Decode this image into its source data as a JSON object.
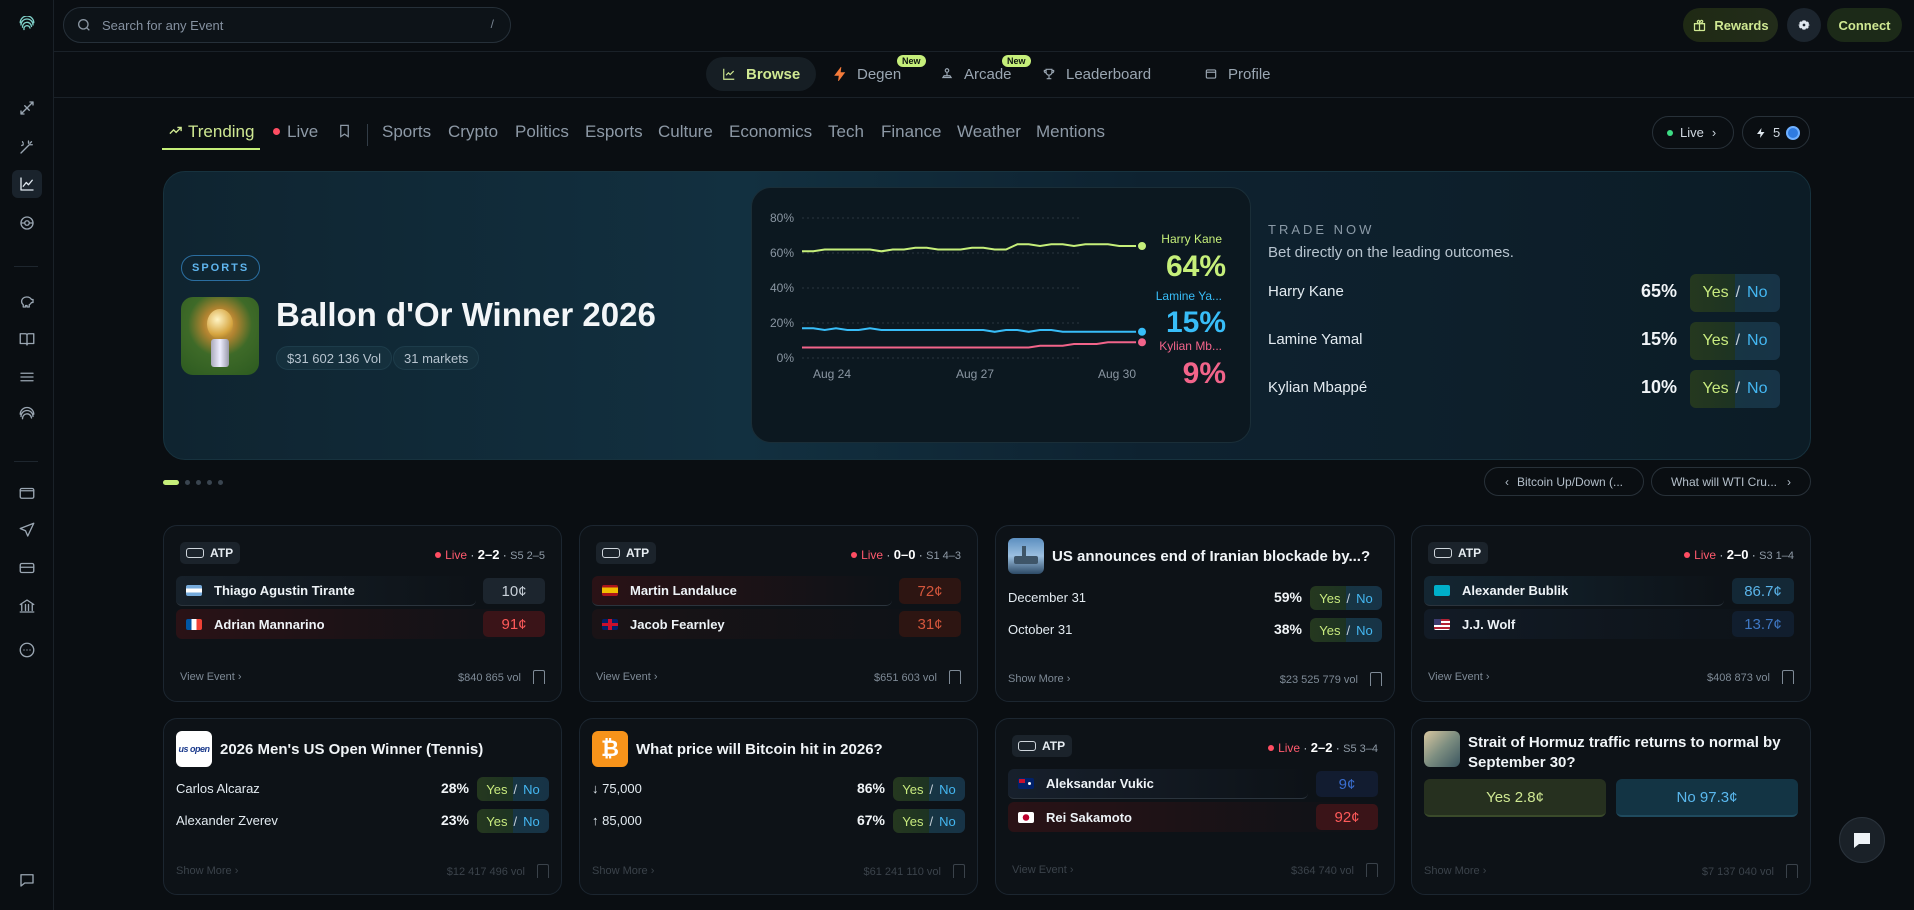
{
  "topbar": {
    "search_placeholder": "Search for any Event",
    "search_shortcut": "/",
    "rewards": "Rewards",
    "connect": "Connect"
  },
  "subnav": [
    {
      "label": "Browse"
    },
    {
      "label": "Degen",
      "badge": "New"
    },
    {
      "label": "Arcade",
      "badge": "New"
    },
    {
      "label": "Leaderboard"
    },
    {
      "label": "Profile"
    }
  ],
  "categories": [
    "Trending",
    "Live",
    "Sports",
    "Crypto",
    "Politics",
    "Esports",
    "Culture",
    "Economics",
    "Tech",
    "Finance",
    "Weather",
    "Mentions"
  ],
  "pills": {
    "live": "Live",
    "boost": "5"
  },
  "hero": {
    "tag": "SPORTS",
    "title": "Ballon d'Or Winner 2026",
    "vol": "$31 602 136 Vol",
    "markets": "31 markets",
    "chart": {
      "yticks": [
        "80%",
        "60%",
        "40%",
        "20%",
        "0%"
      ],
      "xticks": [
        "Aug 24",
        "Aug 27",
        "Aug 30"
      ],
      "series": [
        {
          "name": "Harry Kane",
          "value": "64%",
          "color": "#c6ef7a",
          "points": [
            61,
            61,
            62,
            62,
            62,
            62,
            62,
            61,
            62,
            62,
            63,
            63,
            62,
            62,
            62,
            63,
            63,
            62,
            62,
            65,
            65,
            64,
            65,
            65,
            64,
            65,
            65,
            65,
            64,
            64,
            64
          ]
        },
        {
          "name": "Lamine Ya...",
          "value": "15%",
          "color": "#38bdf8",
          "points": [
            17,
            17,
            16,
            17,
            16,
            16,
            17,
            16,
            16,
            16,
            16,
            16,
            16,
            16,
            16,
            16,
            16,
            15,
            16,
            16,
            15,
            16,
            16,
            15,
            15,
            15,
            15,
            15,
            15,
            15,
            15
          ]
        },
        {
          "name": "Kylian Mb...",
          "value": "9%",
          "color": "#f2648a",
          "points": [
            6,
            6,
            6,
            6,
            6,
            6,
            6,
            6,
            6,
            6,
            6,
            6,
            6,
            6,
            6,
            6,
            6,
            6,
            6,
            6,
            6,
            7,
            7,
            7,
            8,
            8,
            8,
            9,
            9,
            9,
            9
          ]
        }
      ]
    },
    "trade": {
      "heading": "TRADE NOW",
      "sub": "Bet directly on the leading outcomes.",
      "rows": [
        {
          "name": "Harry Kane",
          "pct": "65%"
        },
        {
          "name": "Lamine Yamal",
          "pct": "15%"
        },
        {
          "name": "Kylian Mbappé",
          "pct": "10%"
        }
      ],
      "yes": "Yes",
      "sep": "/",
      "no": "No"
    }
  },
  "carousel": {
    "prev": "Bitcoin Up/Down (...",
    "next": "What will WTI Cru..."
  },
  "cards": [
    {
      "league": "ATP",
      "live": "Live",
      "score": "2–2",
      "set": "S5 2–5",
      "p1": "Thiago Agustin Tirante",
      "p1price": "10¢",
      "p2": "Adrian Mannarino",
      "p2price": "91¢",
      "link": "View Event",
      "vol": "$840 865 vol"
    },
    {
      "league": "ATP",
      "live": "Live",
      "score": "0–0",
      "set": "S1 4–3",
      "p1": "Martin Landaluce",
      "p1price": "72¢",
      "p2": "Jacob Fearnley",
      "p2price": "31¢",
      "link": "View Event",
      "vol": "$651 603 vol"
    },
    {
      "title": "US announces end of Iranian blockade by...?",
      "rows": [
        {
          "l": "December 31",
          "p": "59%"
        },
        {
          "l": "October 31",
          "p": "38%"
        }
      ],
      "link": "Show More",
      "vol": "$23 525 779 vol"
    },
    {
      "league": "ATP",
      "live": "Live",
      "score": "2–0",
      "set": "S3 1–4",
      "p1": "Alexander Bublik",
      "p1price": "86.7¢",
      "p2": "J.J. Wolf",
      "p2price": "13.7¢",
      "link": "View Event",
      "vol": "$408 873 vol"
    },
    {
      "title": "2026 Men's US Open Winner (Tennis)",
      "logo": "us open",
      "rows": [
        {
          "l": "Carlos Alcaraz",
          "p": "28%"
        },
        {
          "l": "Alexander Zverev",
          "p": "23%"
        }
      ],
      "link": "Show More",
      "vol": "$12 417 496 vol"
    },
    {
      "title": "What price will Bitcoin hit in 2026?",
      "rows": [
        {
          "l": "↓ 75,000",
          "p": "86%"
        },
        {
          "l": "↑ 85,000",
          "p": "67%"
        }
      ],
      "link": "Show More",
      "vol": "$61 241 110 vol"
    },
    {
      "league": "ATP",
      "live": "Live",
      "score": "2–2",
      "set": "S5 3–4",
      "p1": "Aleksandar Vukic",
      "p1price": "9¢",
      "p2": "Rei Sakamoto",
      "p2price": "92¢",
      "link": "View Event",
      "vol": "$364 740 vol"
    },
    {
      "title": "Strait of Hormuz traffic returns to normal by September 30?",
      "yes": "Yes 2.8¢",
      "no": "No 97.3¢",
      "link": "Show More",
      "vol": "$7 137 040 vol"
    }
  ]
}
